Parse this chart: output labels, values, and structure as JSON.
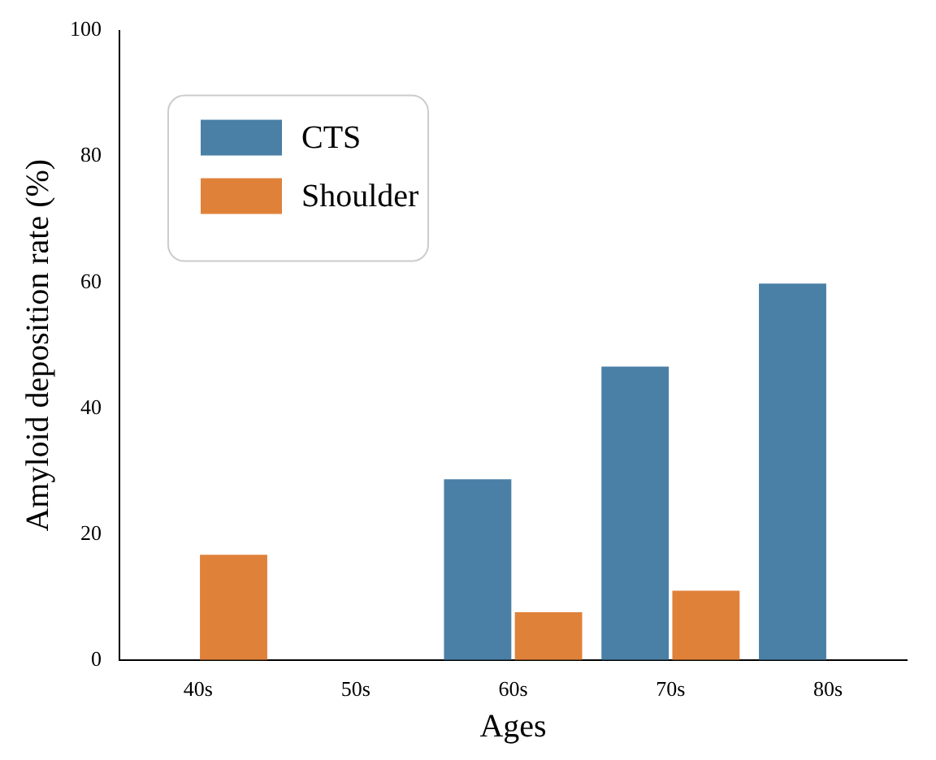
{
  "chart_data": {
    "type": "bar",
    "xlabel": "Ages",
    "ylabel": "Amyloid deposition rate (%)",
    "categories": [
      "40s",
      "50s",
      "60s",
      "70s",
      "80s"
    ],
    "series": [
      {
        "name": "CTS",
        "color": "#4a7fa6",
        "values": [
          0,
          0,
          28.7,
          46.6,
          59.8
        ]
      },
      {
        "name": "Shoulder",
        "color": "#e0813a",
        "values": [
          16.7,
          0,
          7.6,
          11.0,
          0
        ]
      }
    ],
    "ylim": [
      0,
      100
    ],
    "yticks": [
      0,
      20,
      40,
      60,
      80,
      100
    ],
    "grid": false,
    "legend": "top left"
  }
}
